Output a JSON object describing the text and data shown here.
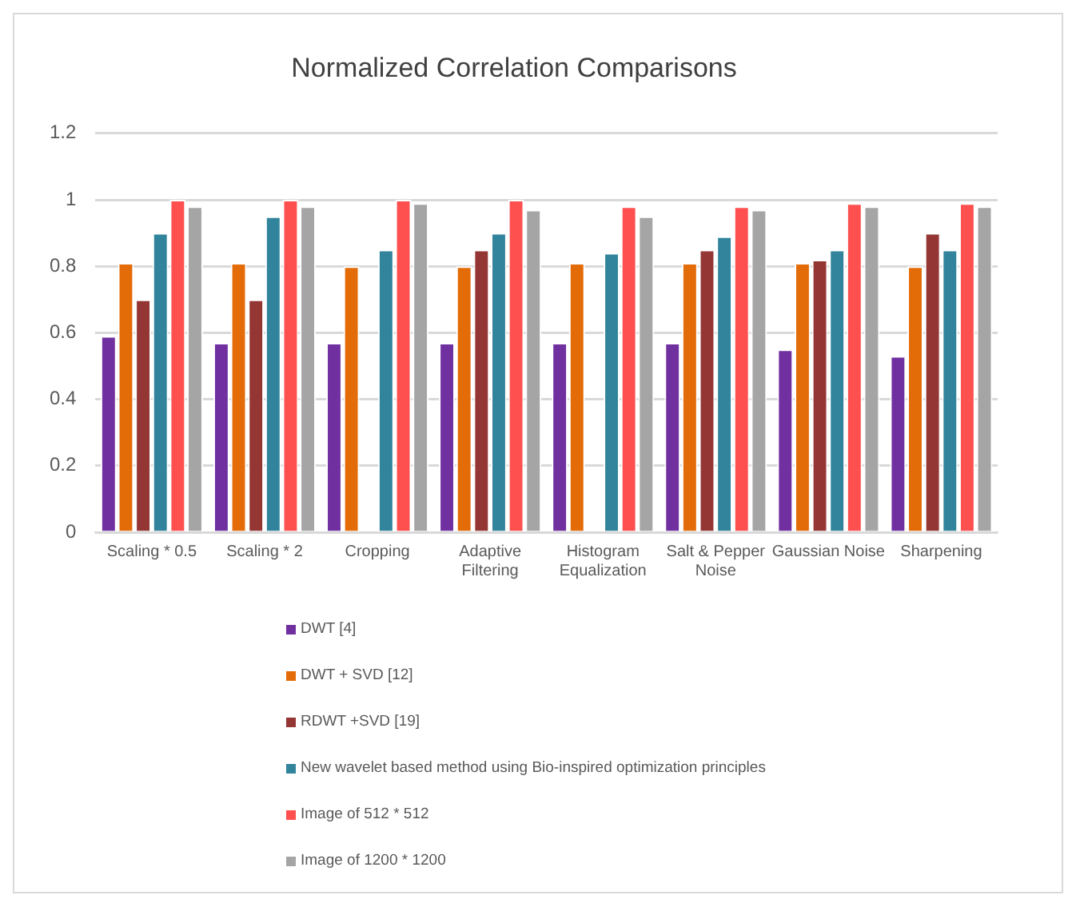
{
  "chart_data": {
    "type": "bar",
    "title": "Normalized Correlation Comparisons",
    "categories": [
      "Scaling * 0.5",
      "Scaling * 2",
      "Cropping",
      "Adaptive Filtering",
      "Histogram Equalization",
      "Salt & Pepper Noise",
      "Gaussian Noise",
      "Sharpening"
    ],
    "series": [
      {
        "name": "DWT [4]",
        "color": "#7030a0",
        "values": [
          0.59,
          0.57,
          0.57,
          0.57,
          0.57,
          0.57,
          0.55,
          0.53
        ]
      },
      {
        "name": "DWT + SVD [12]",
        "color": "#e36c09",
        "values": [
          0.81,
          0.81,
          0.8,
          0.8,
          0.81,
          0.81,
          0.81,
          0.8
        ]
      },
      {
        "name": "RDWT +SVD [19]",
        "color": "#943634",
        "values": [
          0.7,
          0.7,
          null,
          0.85,
          null,
          0.85,
          0.82,
          0.9
        ]
      },
      {
        "name": "New wavelet based method using Bio-inspired optimization principles",
        "color": "#31849b",
        "values": [
          0.9,
          0.95,
          0.85,
          0.9,
          0.84,
          0.89,
          0.85,
          0.85
        ]
      },
      {
        "name": "Image of 512 * 512",
        "color": "#ff5050",
        "values": [
          1.0,
          1.0,
          1.0,
          1.0,
          0.98,
          0.98,
          0.99,
          0.99
        ]
      },
      {
        "name": "Image of 1200 * 1200",
        "color": "#a5a5a5",
        "values": [
          0.98,
          0.98,
          0.99,
          0.97,
          0.95,
          0.97,
          0.98,
          0.98
        ]
      }
    ],
    "ylim": [
      0,
      1.2
    ],
    "yticks": [
      0,
      0.2,
      0.4,
      0.6,
      0.8,
      1,
      1.2
    ],
    "grid": "y",
    "legend": "bottom"
  }
}
